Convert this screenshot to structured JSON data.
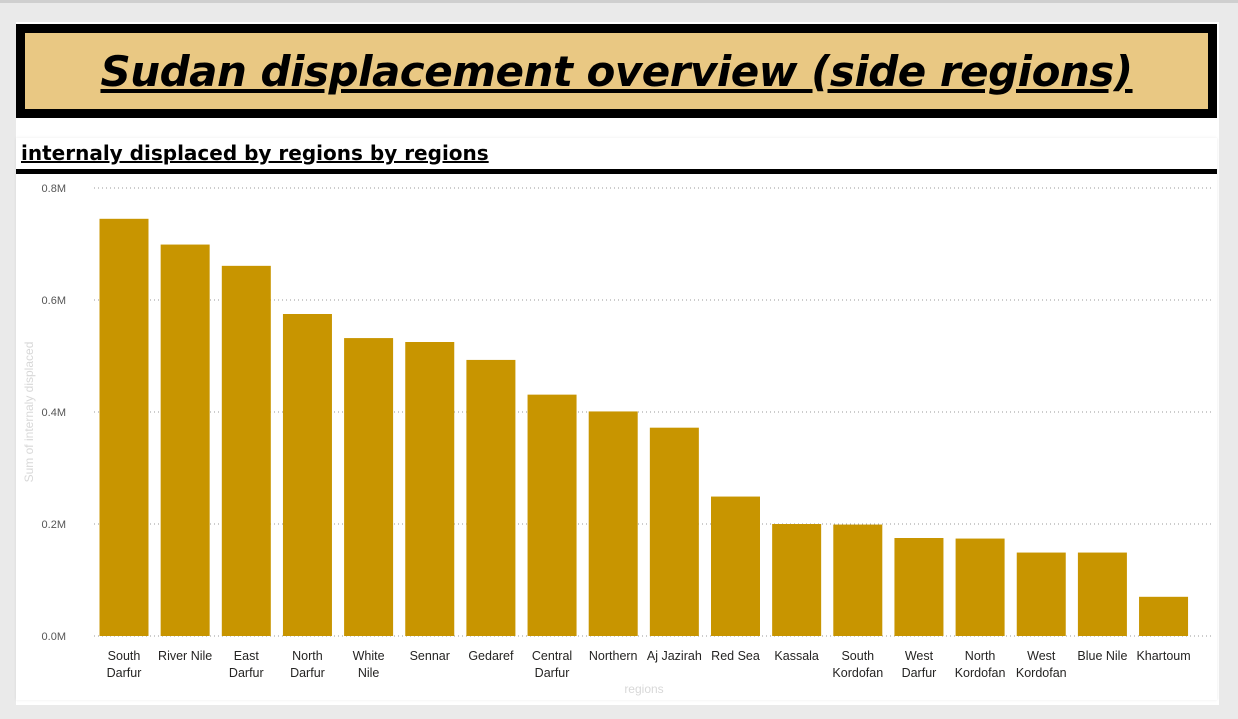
{
  "report": {
    "title": "Sudan displacement overview (side regions)"
  },
  "visual": {
    "title": "internaly displaced by regions by regions"
  },
  "chart_data": {
    "type": "bar",
    "title": "internaly displaced by regions by regions",
    "xlabel": "regions",
    "ylabel": "Sum of internaly displaced",
    "ylim": [
      0,
      800000
    ],
    "yticks": [
      {
        "value": 0,
        "label": "0.0M"
      },
      {
        "value": 200000,
        "label": "0.2M"
      },
      {
        "value": 400000,
        "label": "0.4M"
      },
      {
        "value": 600000,
        "label": "0.6M"
      },
      {
        "value": 800000,
        "label": "0.8M"
      }
    ],
    "grid": true,
    "bar_color": "#c89500",
    "categories": [
      [
        "South",
        "Darfur"
      ],
      [
        "River Nile"
      ],
      [
        "East",
        "Darfur"
      ],
      [
        "North",
        "Darfur"
      ],
      [
        "White",
        "Nile"
      ],
      [
        "Sennar"
      ],
      [
        "Gedaref"
      ],
      [
        "Central",
        "Darfur"
      ],
      [
        "Northern"
      ],
      [
        "Aj Jazirah"
      ],
      [
        "Red Sea"
      ],
      [
        "Kassala"
      ],
      [
        "South",
        "Kordofan"
      ],
      [
        "West",
        "Darfur"
      ],
      [
        "North",
        "Kordofan"
      ],
      [
        "West",
        "Kordofan"
      ],
      [
        "Blue Nile"
      ],
      [
        "Khartoum"
      ]
    ],
    "values": [
      745000,
      699000,
      661000,
      575000,
      532000,
      525000,
      493000,
      431000,
      401000,
      372000,
      249000,
      200000,
      199000,
      175000,
      174000,
      149000,
      149000,
      70000
    ]
  }
}
